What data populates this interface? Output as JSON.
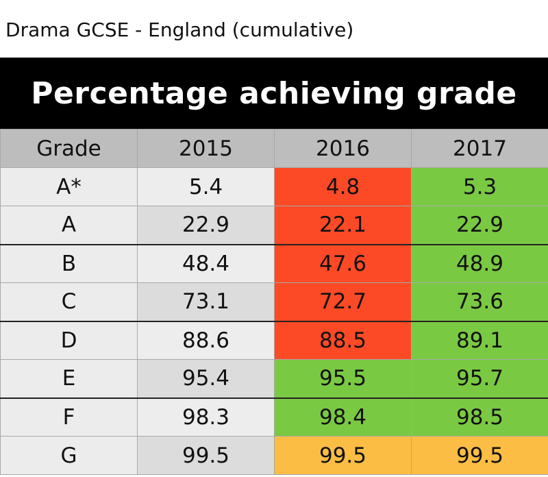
{
  "title": "Drama GCSE - England (cumulative)",
  "chart_data": {
    "type": "table",
    "title": "Percentage achieving grade",
    "columns": [
      "Grade",
      "2015",
      "2016",
      "2017"
    ],
    "rows": [
      {
        "grade": "A*",
        "values": [
          "5.4",
          "4.8",
          "5.3"
        ],
        "colors": [
          "#ededed",
          "#fc4a26",
          "#7ac943"
        ]
      },
      {
        "grade": "A",
        "values": [
          "22.9",
          "22.1",
          "22.9"
        ],
        "colors": [
          "#dcdcdc",
          "#fc4a26",
          "#7ac943"
        ]
      },
      {
        "grade": "B",
        "values": [
          "48.4",
          "47.6",
          "48.9"
        ],
        "colors": [
          "#ededed",
          "#fc4a26",
          "#7ac943"
        ]
      },
      {
        "grade": "C",
        "values": [
          "73.1",
          "72.7",
          "73.6"
        ],
        "colors": [
          "#dcdcdc",
          "#fc4a26",
          "#7ac943"
        ]
      },
      {
        "grade": "D",
        "values": [
          "88.6",
          "88.5",
          "89.1"
        ],
        "colors": [
          "#ededed",
          "#fc4a26",
          "#7ac943"
        ]
      },
      {
        "grade": "E",
        "values": [
          "95.4",
          "95.5",
          "95.7"
        ],
        "colors": [
          "#dcdcdc",
          "#7ac943",
          "#7ac943"
        ]
      },
      {
        "grade": "F",
        "values": [
          "98.3",
          "98.4",
          "98.5"
        ],
        "colors": [
          "#ededed",
          "#7ac943",
          "#7ac943"
        ]
      },
      {
        "grade": "G",
        "values": [
          "99.5",
          "99.5",
          "99.5"
        ],
        "colors": [
          "#dcdcdc",
          "#fbbd44",
          "#fbbd44"
        ]
      }
    ]
  }
}
